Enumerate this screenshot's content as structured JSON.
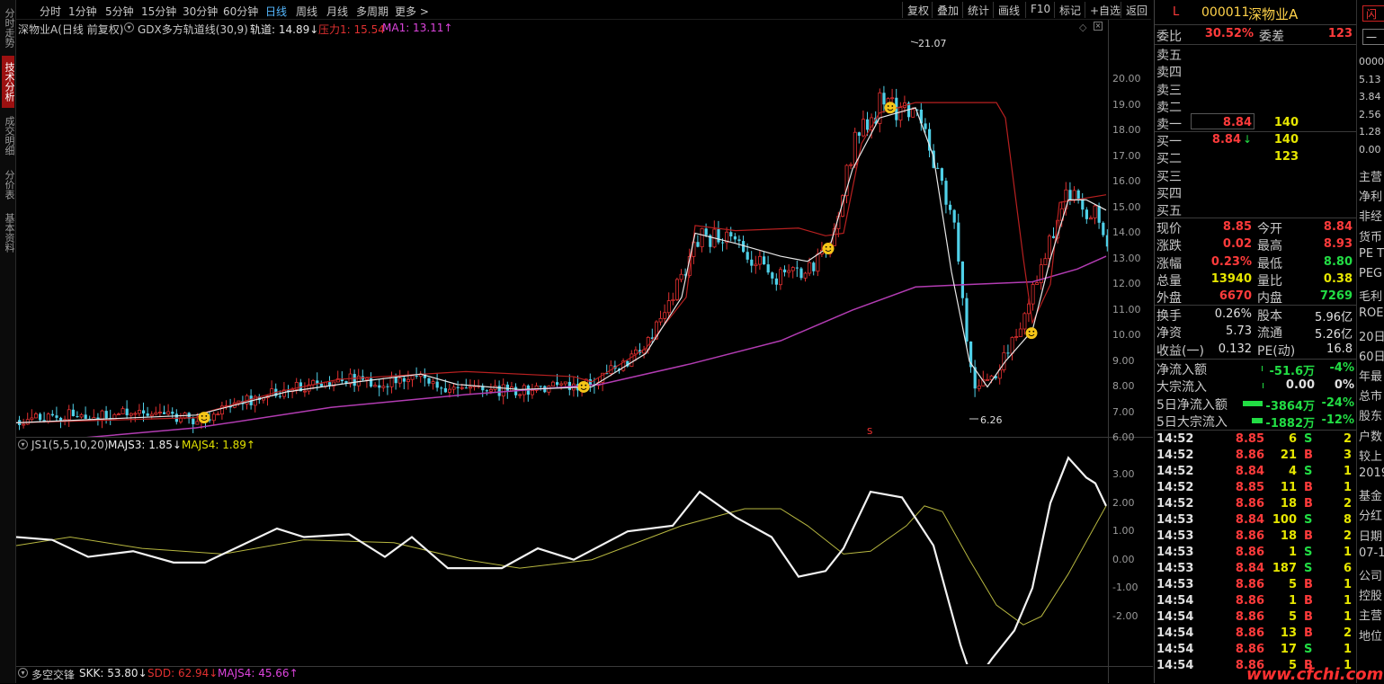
{
  "toolbar": {
    "periods": [
      "分时",
      "1分钟",
      "5分钟",
      "15分钟",
      "30分钟",
      "60分钟",
      "日线",
      "周线",
      "月线",
      "多周期",
      "更多 >"
    ],
    "active_period": "日线",
    "buttons": [
      "复权",
      "叠加",
      "统计",
      "画线",
      "F10",
      "标记",
      "+自选",
      "返回"
    ]
  },
  "side_tabs": [
    "分时走势",
    "技术分析",
    "成交明细",
    "分价表",
    "基本资料"
  ],
  "main_chart": {
    "stock_label": "深物业A(日线 前复权)",
    "indicator": "GDX多方轨道线(30,9)",
    "track": "轨道: 14.89↓",
    "pressure": "压力1: 15.54",
    "ma": "MA1: 13.11↑",
    "high_mark": "21.07",
    "low_mark": "6.26",
    "s_mark": "S",
    "y_ticks": [
      "20.00",
      "19.00",
      "18.00",
      "17.00",
      "16.00",
      "15.00",
      "14.00",
      "13.00",
      "12.00",
      "11.00",
      "10.00",
      "9.00",
      "8.00",
      "7.00",
      "6.00"
    ]
  },
  "sub1": {
    "name": "JS1(5,5,10,20)",
    "majs3": "MAJS3: 1.85↓",
    "majs4": "MAJS4: 1.89↑",
    "y_ticks": [
      "3.00",
      "2.00",
      "1.00",
      "0.00",
      "-1.00",
      "-2.00"
    ]
  },
  "sub2": {
    "name": "多空交锋",
    "skk": "SKK: 53.80↓",
    "sdd": "SDD: 62.94↓",
    "majs4": "MAJS4: 45.66↑"
  },
  "quote": {
    "flag": "L",
    "code": "000011",
    "name": "深物业A",
    "weibi_label": "委比",
    "weibi": "30.52%",
    "weicha_label": "委差",
    "weicha": "123",
    "sell": [
      {
        "label": "卖五",
        "price": "",
        "vol": ""
      },
      {
        "label": "卖四",
        "price": "",
        "vol": ""
      },
      {
        "label": "卖三",
        "price": "",
        "vol": ""
      },
      {
        "label": "卖二",
        "price": "",
        "vol": ""
      },
      {
        "label": "卖一",
        "price": "8.84",
        "vol": "140"
      }
    ],
    "buy": [
      {
        "label": "买一",
        "price": "8.84",
        "arrow": "↓",
        "vol": "140"
      },
      {
        "label": "买二",
        "price": "",
        "arrow": "",
        "vol": "123"
      },
      {
        "label": "买三",
        "price": "",
        "arrow": "",
        "vol": ""
      },
      {
        "label": "买四",
        "price": "",
        "arrow": "",
        "vol": ""
      },
      {
        "label": "买五",
        "price": "",
        "arrow": "",
        "vol": ""
      }
    ],
    "stats": [
      {
        "l1": "现价",
        "v1": "8.85",
        "c1": "red",
        "l2": "今开",
        "v2": "8.84",
        "c2": "red"
      },
      {
        "l1": "涨跌",
        "v1": "0.02",
        "c1": "red",
        "l2": "最高",
        "v2": "8.93",
        "c2": "red"
      },
      {
        "l1": "涨幅",
        "v1": "0.23%",
        "c1": "red",
        "l2": "最低",
        "v2": "8.80",
        "c2": "grn"
      },
      {
        "l1": "总量",
        "v1": "13940",
        "c1": "yel",
        "l2": "量比",
        "v2": "0.38",
        "c2": "yel"
      },
      {
        "l1": "外盘",
        "v1": "6670",
        "c1": "red",
        "l2": "内盘",
        "v2": "7269",
        "c2": "grn"
      }
    ],
    "stats2": [
      {
        "l1": "换手",
        "v1": "0.26%",
        "l2": "股本",
        "v2": "5.96亿"
      },
      {
        "l1": "净资",
        "v1": "5.73",
        "l2": "流通",
        "v2": "5.26亿"
      },
      {
        "l1": "收益(一)",
        "v1": "0.132",
        "l2": "PE(动)",
        "v2": "16.8"
      }
    ],
    "flows": [
      {
        "label": "净流入额",
        "value": "-51.6万",
        "pct": "-4%",
        "c": "grn",
        "bar": 0.02
      },
      {
        "label": "大宗流入",
        "value": "0.00",
        "pct": "0%",
        "c": "wht",
        "bar": 0
      },
      {
        "label": "5日净流入额",
        "value": "-3864万",
        "pct": "-24%",
        "c": "grn",
        "bar": 0.85
      },
      {
        "label": "5日大宗流入",
        "value": "-1882万",
        "pct": "-12%",
        "c": "grn",
        "bar": 0.45
      }
    ]
  },
  "ticks": [
    {
      "t": "14:52",
      "p": "8.85",
      "v": "6",
      "bs": "S",
      "n": "2"
    },
    {
      "t": "14:52",
      "p": "8.86",
      "v": "21",
      "bs": "B",
      "n": "3"
    },
    {
      "t": "14:52",
      "p": "8.84",
      "v": "4",
      "bs": "S",
      "n": "1"
    },
    {
      "t": "14:52",
      "p": "8.85",
      "v": "11",
      "bs": "B",
      "n": "1"
    },
    {
      "t": "14:52",
      "p": "8.86",
      "v": "18",
      "bs": "B",
      "n": "2"
    },
    {
      "t": "14:53",
      "p": "8.84",
      "v": "100",
      "bs": "S",
      "n": "8"
    },
    {
      "t": "14:53",
      "p": "8.86",
      "v": "18",
      "bs": "B",
      "n": "2"
    },
    {
      "t": "14:53",
      "p": "8.86",
      "v": "1",
      "bs": "S",
      "n": "1"
    },
    {
      "t": "14:53",
      "p": "8.84",
      "v": "187",
      "bs": "S",
      "n": "6"
    },
    {
      "t": "14:53",
      "p": "8.86",
      "v": "5",
      "bs": "B",
      "n": "1"
    },
    {
      "t": "14:54",
      "p": "8.86",
      "v": "1",
      "bs": "B",
      "n": "1"
    },
    {
      "t": "14:54",
      "p": "8.86",
      "v": "5",
      "bs": "B",
      "n": "1"
    },
    {
      "t": "14:54",
      "p": "8.86",
      "v": "13",
      "bs": "B",
      "n": "2"
    },
    {
      "t": "14:54",
      "p": "8.86",
      "v": "17",
      "bs": "S",
      "n": "1"
    },
    {
      "t": "14:54",
      "p": "8.86",
      "v": "5",
      "bs": "B",
      "n": "1"
    }
  ],
  "far": {
    "btn1": "闪",
    "btn2": "一",
    "items": [
      "0000",
      "5.13",
      "3.84",
      "2.56",
      "1.28",
      "0.00",
      "主营",
      "净利",
      "非经",
      "货币",
      "PE T",
      "PEG",
      "毛利",
      "ROE",
      "20日",
      "60日",
      "年最",
      "总市",
      "股东",
      "户数",
      "较上",
      "2019",
      "基金",
      "分红",
      "日期",
      "07-1",
      "公司",
      "控股",
      "主营",
      "地位"
    ]
  },
  "watermark": "www.cfchi.com"
}
